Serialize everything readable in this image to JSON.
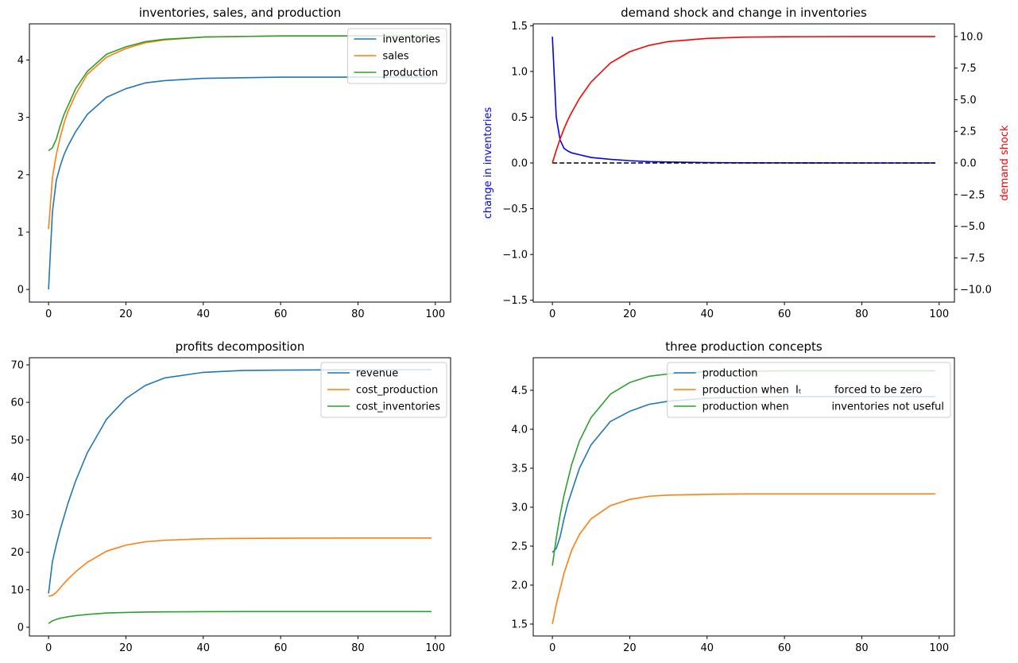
{
  "chart_data": [
    {
      "type": "line",
      "title": "inventories, sales, and production",
      "x": [
        0,
        1,
        2,
        3,
        4,
        5,
        7,
        10,
        15,
        20,
        25,
        30,
        40,
        50,
        60,
        80,
        99
      ],
      "series": [
        {
          "name": "inventories",
          "color": "#1f77b4",
          "values": [
            0,
            1.35,
            1.9,
            2.15,
            2.35,
            2.5,
            2.75,
            3.05,
            3.35,
            3.5,
            3.6,
            3.64,
            3.68,
            3.69,
            3.7,
            3.7,
            3.7
          ]
        },
        {
          "name": "sales",
          "color": "#ff7f0e",
          "values": [
            1.05,
            1.95,
            2.35,
            2.65,
            2.9,
            3.1,
            3.4,
            3.75,
            4.05,
            4.2,
            4.3,
            4.35,
            4.4,
            4.41,
            4.42,
            4.42,
            4.42
          ]
        },
        {
          "name": "production",
          "color": "#2ca02c",
          "values": [
            2.42,
            2.47,
            2.62,
            2.85,
            3.05,
            3.2,
            3.5,
            3.8,
            4.1,
            4.23,
            4.32,
            4.36,
            4.4,
            4.41,
            4.42,
            4.42,
            4.42
          ]
        }
      ],
      "xlim": [
        -4.95,
        103.95
      ],
      "xticks": [
        0,
        20,
        40,
        60,
        80,
        100
      ],
      "ylim": [
        -0.22,
        4.63
      ],
      "yticks": [
        0,
        1,
        2,
        3,
        4
      ],
      "legend": "upper right"
    },
    {
      "type": "line",
      "title": "demand shock and change in inventories",
      "x": [
        0,
        1,
        2,
        3,
        4,
        5,
        7,
        10,
        15,
        20,
        25,
        30,
        40,
        50,
        60,
        80,
        99
      ],
      "series": [
        {
          "color": "#0000ff",
          "values": [
            1.38,
            0.5,
            0.25,
            0.16,
            0.13,
            0.11,
            0.09,
            0.06,
            0.04,
            0.025,
            0.015,
            0.01,
            0.004,
            0.002,
            0.001,
            0,
            0
          ]
        },
        {
          "color": "#000000",
          "linestyle": "dashed",
          "values": [
            0,
            0,
            0,
            0,
            0,
            0,
            0,
            0,
            0,
            0,
            0,
            0,
            0,
            0,
            0,
            0,
            0
          ]
        },
        {
          "color": "#ff0000",
          "axis": "y2",
          "values": [
            0,
            1.0,
            1.9,
            2.7,
            3.4,
            4.0,
            5.1,
            6.4,
            7.9,
            8.8,
            9.3,
            9.6,
            9.85,
            9.95,
            9.98,
            10,
            10
          ]
        }
      ],
      "xlim": [
        -4.95,
        103.95
      ],
      "xticks": [
        0,
        20,
        40,
        60,
        80,
        100
      ],
      "ylim": [
        -1.52,
        1.52
      ],
      "yticks": [
        {
          "value": -1.5,
          "label": "−1.5"
        },
        {
          "value": -1.0,
          "label": "−1.0"
        },
        {
          "value": -0.5,
          "label": "−0.5"
        },
        {
          "value": 0,
          "label": "0.0"
        },
        {
          "value": 0.5,
          "label": "0.5"
        },
        {
          "value": 1.0,
          "label": "1.0"
        },
        {
          "value": 1.5,
          "label": "1.5"
        }
      ],
      "y2lim": [
        -11,
        11
      ],
      "y2ticks": [
        {
          "value": -10,
          "label": "−10.0"
        },
        {
          "value": -7.5,
          "label": "−7.5"
        },
        {
          "value": -5,
          "label": "−5.0"
        },
        {
          "value": -2.5,
          "label": "−2.5"
        },
        {
          "value": 0,
          "label": "0.0"
        },
        {
          "value": 2.5,
          "label": "2.5"
        },
        {
          "value": 5,
          "label": "5.0"
        },
        {
          "value": 7.5,
          "label": "7.5"
        },
        {
          "value": 10,
          "label": "10.0"
        }
      ],
      "ylabel": "change in inventories",
      "ylabel_color": "#0000ff",
      "y2label": "demand shock",
      "y2label_color": "#ff0000"
    },
    {
      "type": "line",
      "title": "profits decomposition",
      "x": [
        0,
        1,
        2,
        3,
        4,
        5,
        7,
        10,
        15,
        20,
        25,
        30,
        40,
        50,
        60,
        80,
        99
      ],
      "series": [
        {
          "name": "revenue",
          "color": "#1f77b4",
          "values": [
            9,
            17.5,
            22,
            26,
            29.5,
            33,
            39,
            46.5,
            55.5,
            61,
            64.5,
            66.5,
            68,
            68.5,
            68.6,
            68.7,
            68.7
          ]
        },
        {
          "name": "cost_production",
          "color": "#ff7f0e",
          "values": [
            8.3,
            8.5,
            9.3,
            10.5,
            11.7,
            12.8,
            14.8,
            17.3,
            20.3,
            21.9,
            22.8,
            23.2,
            23.6,
            23.7,
            23.75,
            23.8,
            23.8
          ]
        },
        {
          "name": "cost_inventories",
          "color": "#2ca02c",
          "values": [
            1.0,
            1.7,
            2.1,
            2.4,
            2.6,
            2.8,
            3.1,
            3.4,
            3.8,
            3.95,
            4.05,
            4.1,
            4.15,
            4.17,
            4.18,
            4.18,
            4.18
          ]
        }
      ],
      "xlim": [
        -4.95,
        103.95
      ],
      "xticks": [
        0,
        20,
        40,
        60,
        80,
        100
      ],
      "ylim": [
        -2.33,
        71.9
      ],
      "yticks": [
        0,
        10,
        20,
        30,
        40,
        50,
        60,
        70
      ],
      "legend": "upper right"
    },
    {
      "type": "line",
      "title": "three production concepts",
      "x": [
        0,
        1,
        2,
        3,
        4,
        5,
        7,
        10,
        15,
        20,
        25,
        30,
        40,
        50,
        60,
        80,
        99
      ],
      "series": [
        {
          "name": "production",
          "color": "#1f77b4",
          "values": [
            2.42,
            2.47,
            2.62,
            2.85,
            3.05,
            3.2,
            3.5,
            3.8,
            4.1,
            4.23,
            4.32,
            4.36,
            4.4,
            4.41,
            4.42,
            4.42,
            4.42
          ]
        },
        {
          "name": "production when  Iₜ          forced to be zero",
          "color": "#ff7f0e",
          "values": [
            1.5,
            1.75,
            1.95,
            2.15,
            2.3,
            2.45,
            2.65,
            2.85,
            3.02,
            3.1,
            3.14,
            3.155,
            3.165,
            3.17,
            3.17,
            3.17,
            3.17
          ]
        },
        {
          "name": "production when             inventories not useful",
          "color": "#2ca02c",
          "values": [
            2.25,
            2.6,
            2.9,
            3.15,
            3.35,
            3.55,
            3.85,
            4.15,
            4.45,
            4.6,
            4.68,
            4.71,
            4.74,
            4.745,
            4.75,
            4.75,
            4.75
          ]
        }
      ],
      "xlim": [
        -4.95,
        103.95
      ],
      "xticks": [
        0,
        20,
        40,
        60,
        80,
        100
      ],
      "ylim": [
        1.347,
        4.918
      ],
      "yticks": [
        1.5,
        {
          "value": 2.0,
          "label": "2.0"
        },
        2.5,
        {
          "value": 3.0,
          "label": "3.0"
        },
        3.5,
        {
          "value": 4.0,
          "label": "4.0"
        },
        4.5
      ],
      "legend": "upper right"
    }
  ]
}
